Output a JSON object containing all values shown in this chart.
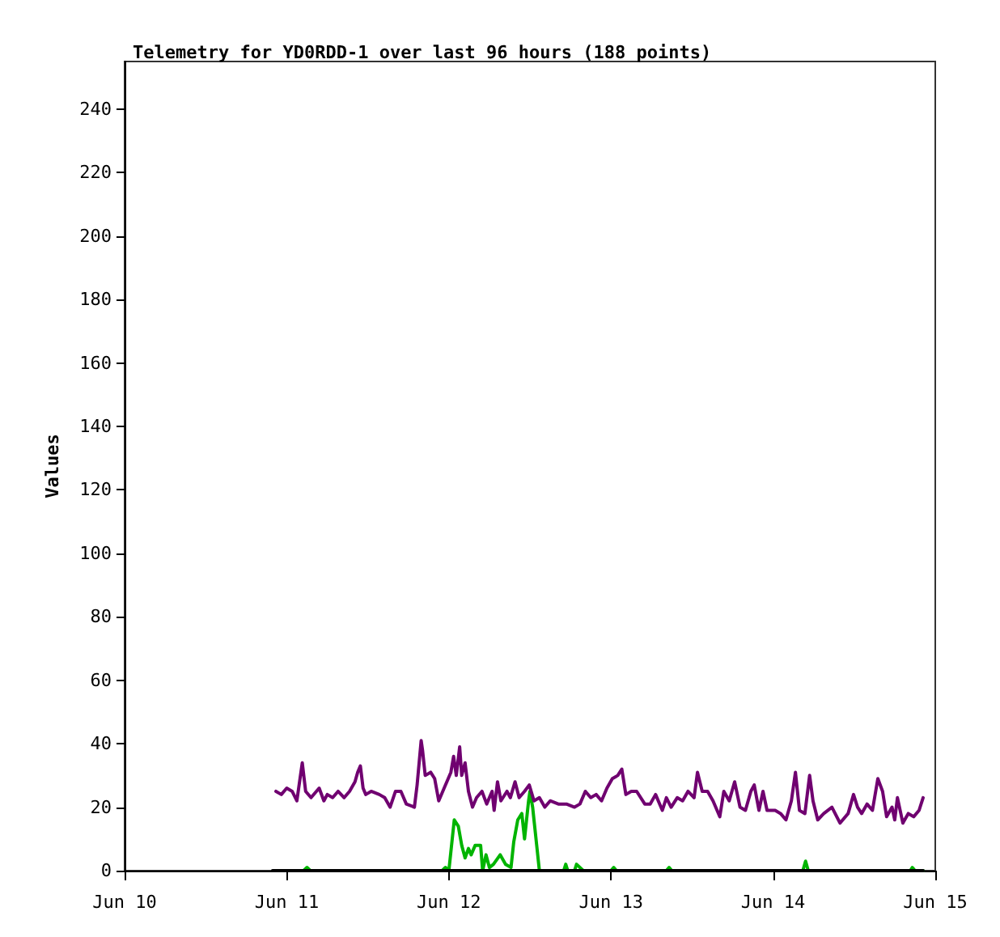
{
  "chart_data": {
    "type": "line",
    "title": "Telemetry for YD0RDD-1 over last 96 hours (188 points)",
    "ylabel": "Values",
    "xlim": [
      "--06-10",
      "--06-15"
    ],
    "xticks": [
      {
        "value": "--06-10",
        "label": "Jun 10"
      },
      {
        "value": "--06-11",
        "label": "Jun 11"
      },
      {
        "value": "--06-12",
        "label": "Jun 12"
      },
      {
        "value": "--06-13",
        "label": "Jun 13"
      },
      {
        "value": "--06-14",
        "label": "Jun 14"
      },
      {
        "value": "--06-15",
        "label": "Jun 15"
      }
    ],
    "ylim": [
      0,
      255
    ],
    "yticks": [
      0,
      20,
      40,
      60,
      80,
      100,
      120,
      140,
      160,
      180,
      200,
      220,
      240
    ],
    "grid": false,
    "marker": "none",
    "line_style": "solid",
    "series": [
      {
        "color": "#000000",
        "x": [
          "--06-10T21:54",
          "--06-14T22:12"
        ],
        "values": [
          0,
          0
        ]
      },
      {
        "color": "#00b400",
        "x": [
          "--06-11T02:30",
          "--06-11T03:00",
          "--06-11T03:30",
          "--06-11T23:00",
          "--06-11T23:30",
          "--06-12T00:00",
          "--06-12T00:48",
          "--06-12T01:24",
          "--06-12T01:54",
          "--06-12T02:24",
          "--06-12T02:54",
          "--06-12T03:18",
          "--06-12T03:54",
          "--06-12T04:42",
          "--06-12T05:00",
          "--06-12T05:30",
          "--06-12T06:00",
          "--06-12T06:36",
          "--06-12T07:36",
          "--06-12T08:24",
          "--06-12T09:12",
          "--06-12T09:36",
          "--06-12T10:12",
          "--06-12T10:48",
          "--06-12T11:12",
          "--06-12T11:48",
          "--06-12T12:00",
          "--06-12T12:24",
          "--06-12T13:00",
          "--06-12T13:24",
          "--06-12T17:00",
          "--06-12T17:18",
          "--06-12T17:36",
          "--06-12T18:36",
          "--06-12T18:54",
          "--06-12T19:54",
          "--06-13T00:00",
          "--06-13T00:24",
          "--06-13T00:48",
          "--06-13T08:12",
          "--06-13T08:36",
          "--06-13T09:00",
          "--06-14T04:24",
          "--06-14T04:48",
          "--06-14T05:12",
          "--06-14T20:18",
          "--06-14T20:36",
          "--06-14T21:00",
          "--06-14T22:12"
        ],
        "values": [
          0,
          1,
          0,
          0,
          1,
          0,
          16,
          14,
          8,
          4,
          7,
          5,
          8,
          8,
          0,
          5,
          1,
          2,
          5,
          2,
          1,
          9,
          16,
          18,
          10,
          22,
          25,
          20,
          8,
          0,
          0,
          2,
          0,
          0,
          2,
          0,
          0,
          1,
          0,
          0,
          1,
          0,
          0,
          3,
          0,
          0,
          1,
          0,
          0
        ]
      },
      {
        "color": "#700070",
        "x": [
          "--06-10T22:24",
          "--06-10T23:12",
          "--06-11T00:00",
          "--06-11T00:48",
          "--06-11T01:30",
          "--06-11T02:18",
          "--06-11T02:48",
          "--06-11T03:36",
          "--06-11T04:48",
          "--06-11T05:30",
          "--06-11T06:00",
          "--06-11T06:48",
          "--06-11T07:36",
          "--06-11T08:30",
          "--06-11T09:18",
          "--06-11T10:06",
          "--06-11T10:30",
          "--06-11T10:54",
          "--06-11T11:18",
          "--06-11T11:42",
          "--06-11T12:30",
          "--06-11T13:42",
          "--06-11T14:30",
          "--06-11T15:18",
          "--06-11T16:06",
          "--06-11T16:54",
          "--06-11T17:42",
          "--06-11T18:54",
          "--06-11T19:18",
          "--06-11T19:54",
          "--06-11T20:06",
          "--06-11T20:30",
          "--06-11T21:18",
          "--06-11T21:54",
          "--06-11T22:30",
          "--06-11T23:18",
          "--06-12T00:18",
          "--06-12T00:42",
          "--06-12T01:06",
          "--06-12T01:36",
          "--06-12T01:54",
          "--06-12T02:24",
          "--06-12T02:54",
          "--06-12T03:30",
          "--06-12T04:06",
          "--06-12T04:54",
          "--06-12T05:36",
          "--06-12T06:24",
          "--06-12T06:42",
          "--06-12T07:12",
          "--06-12T07:42",
          "--06-12T08:36",
          "--06-12T09:06",
          "--06-12T09:48",
          "--06-12T10:24",
          "--06-12T11:12",
          "--06-12T11:54",
          "--06-12T12:36",
          "--06-12T13:24",
          "--06-12T14:12",
          "--06-12T15:00",
          "--06-12T16:12",
          "--06-12T17:24",
          "--06-12T18:36",
          "--06-12T19:24",
          "--06-12T20:12",
          "--06-12T21:00",
          "--06-12T21:48",
          "--06-12T22:36",
          "--06-12T23:24",
          "--06-13T00:12",
          "--06-13T01:00",
          "--06-13T01:36",
          "--06-13T02:12",
          "--06-13T03:00",
          "--06-13T03:48",
          "--06-13T05:00",
          "--06-13T05:48",
          "--06-13T06:36",
          "--06-13T07:36",
          "--06-13T08:12",
          "--06-13T08:54",
          "--06-13T09:48",
          "--06-13T10:36",
          "--06-13T11:24",
          "--06-13T12:18",
          "--06-13T12:48",
          "--06-13T13:30",
          "--06-13T14:18",
          "--06-13T15:06",
          "--06-13T16:06",
          "--06-13T16:42",
          "--06-13T17:30",
          "--06-13T18:18",
          "--06-13T19:06",
          "--06-13T19:54",
          "--06-13T20:42",
          "--06-13T21:12",
          "--06-13T21:54",
          "--06-13T22:30",
          "--06-13T23:06",
          "--06-14T00:18",
          "--06-14T01:06",
          "--06-14T01:54",
          "--06-14T02:42",
          "--06-14T03:18",
          "--06-14T03:54",
          "--06-14T04:42",
          "--06-14T05:24",
          "--06-14T05:54",
          "--06-14T06:36",
          "--06-14T07:30",
          "--06-14T08:42",
          "--06-14T09:54",
          "--06-14T11:06",
          "--06-14T11:54",
          "--06-14T12:30",
          "--06-14T13:06",
          "--06-14T13:54",
          "--06-14T14:42",
          "--06-14T15:30",
          "--06-14T16:12",
          "--06-14T16:48",
          "--06-14T17:36",
          "--06-14T18:00",
          "--06-14T18:24",
          "--06-14T19:12",
          "--06-14T20:00",
          "--06-14T20:48",
          "--06-14T21:36",
          "--06-14T22:12"
        ],
        "values": [
          25,
          24,
          26,
          25,
          22,
          34,
          25,
          23,
          26,
          22,
          24,
          23,
          25,
          23,
          25,
          28,
          31,
          33,
          26,
          24,
          25,
          24,
          23,
          20,
          25,
          25,
          21,
          20,
          27,
          41,
          38,
          30,
          31,
          29,
          22,
          26,
          31,
          36,
          30,
          39,
          30,
          34,
          25,
          20,
          23,
          25,
          21,
          25,
          19,
          28,
          22,
          25,
          23,
          28,
          23,
          25,
          27,
          22,
          23,
          20,
          22,
          21,
          21,
          20,
          21,
          25,
          23,
          24,
          22,
          26,
          29,
          30,
          32,
          24,
          25,
          25,
          21,
          21,
          24,
          19,
          23,
          20,
          23,
          22,
          25,
          23,
          31,
          25,
          25,
          22,
          17,
          25,
          22,
          28,
          20,
          19,
          25,
          27,
          19,
          25,
          19,
          19,
          18,
          16,
          22,
          31,
          19,
          18,
          30,
          22,
          16,
          18,
          20,
          15,
          18,
          24,
          20,
          18,
          21,
          19,
          29,
          25,
          17,
          20,
          16,
          23,
          15,
          18,
          17,
          19,
          23
        ]
      }
    ]
  }
}
